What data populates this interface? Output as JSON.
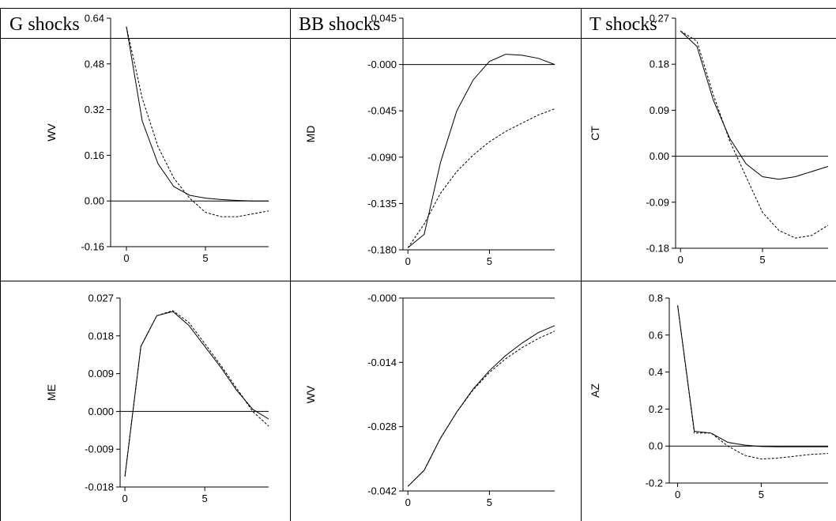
{
  "columns": [
    {
      "header": "G shocks"
    },
    {
      "header": "BB shocks"
    },
    {
      "header": "T shocks"
    }
  ],
  "chart_data": [
    {
      "type": "line",
      "panel": "top-left",
      "ylabel": "WV",
      "ylim": [
        -0.16,
        0.64
      ],
      "yticks": [
        "0.64",
        "0.48",
        "0.32",
        "0.16",
        "0.00",
        "-0.16"
      ],
      "xlim": [
        -1,
        9
      ],
      "xticks": [
        "0",
        "5"
      ],
      "x": [
        0,
        1,
        2,
        3,
        4,
        5,
        6,
        7,
        8,
        9
      ],
      "series": [
        {
          "style": "solid",
          "values": [
            0.61,
            0.28,
            0.13,
            0.05,
            0.02,
            0.01,
            0.005,
            0.002,
            0.0,
            0.0
          ]
        },
        {
          "style": "dashed",
          "values": [
            0.61,
            0.36,
            0.19,
            0.08,
            0.01,
            -0.04,
            -0.055,
            -0.055,
            -0.045,
            -0.035
          ]
        }
      ]
    },
    {
      "type": "line",
      "panel": "top-middle",
      "ylabel": "MD",
      "ylim": [
        -0.18,
        0.045
      ],
      "yticks": [
        "0.045",
        "-0.000",
        "-0.045",
        "-0.090",
        "-0.135",
        "-0.180"
      ],
      "xlim": [
        -0.3,
        9
      ],
      "xticks": [
        "0",
        "5"
      ],
      "x": [
        0,
        1,
        2,
        3,
        4,
        5,
        6,
        7,
        8,
        9
      ],
      "series": [
        {
          "style": "solid",
          "values": [
            -0.178,
            -0.165,
            -0.095,
            -0.045,
            -0.015,
            0.003,
            0.01,
            0.009,
            0.006,
            0.0
          ]
        },
        {
          "style": "dashed",
          "values": [
            -0.178,
            -0.155,
            -0.125,
            -0.104,
            -0.088,
            -0.075,
            -0.065,
            -0.057,
            -0.049,
            -0.043
          ]
        }
      ]
    },
    {
      "type": "line",
      "panel": "top-right",
      "ylabel": "CT",
      "ylim": [
        -0.18,
        0.27
      ],
      "yticks": [
        "0.27",
        "0.18",
        "0.09",
        "0.00",
        "-0.09",
        "-0.18"
      ],
      "xlim": [
        -0.3,
        9
      ],
      "xticks": [
        "0",
        "5"
      ],
      "x": [
        0,
        1,
        2,
        3,
        4,
        5,
        6,
        7,
        8,
        9
      ],
      "series": [
        {
          "style": "solid",
          "values": [
            0.245,
            0.215,
            0.11,
            0.035,
            -0.015,
            -0.04,
            -0.045,
            -0.04,
            -0.03,
            -0.02
          ]
        },
        {
          "style": "dashed",
          "values": [
            0.245,
            0.225,
            0.12,
            0.03,
            -0.04,
            -0.11,
            -0.145,
            -0.16,
            -0.155,
            -0.135
          ]
        }
      ]
    },
    {
      "type": "line",
      "panel": "bottom-left",
      "ylabel": "ME",
      "ylim": [
        -0.018,
        0.027
      ],
      "yticks": [
        "0.027",
        "0.018",
        "0.009",
        "0.000",
        "-0.009",
        "-0.018"
      ],
      "xlim": [
        -0.3,
        9
      ],
      "xticks": [
        "0",
        "5"
      ],
      "x": [
        0,
        1,
        2,
        3,
        4,
        5,
        6,
        7,
        8,
        9
      ],
      "series": [
        {
          "style": "solid",
          "values": [
            -0.0155,
            0.0155,
            0.0228,
            0.0238,
            0.0205,
            0.0155,
            0.0105,
            0.005,
            0.0005,
            -0.0018
          ]
        },
        {
          "style": "dashed",
          "values": [
            -0.0155,
            0.0155,
            0.0228,
            0.024,
            0.0212,
            0.0162,
            0.011,
            0.0055,
            0.0,
            -0.0035
          ]
        }
      ]
    },
    {
      "type": "line",
      "panel": "bottom-middle",
      "ylabel": "WV",
      "ylim": [
        -0.042,
        0.0
      ],
      "yticks": [
        "-0.000",
        "-0.014",
        "-0.028",
        "-0.042"
      ],
      "xlim": [
        -0.3,
        9
      ],
      "xticks": [
        "0",
        "5"
      ],
      "x": [
        0,
        1,
        2,
        3,
        4,
        5,
        6,
        7,
        8,
        9
      ],
      "series": [
        {
          "style": "solid",
          "values": [
            -0.041,
            -0.0375,
            -0.0305,
            -0.0248,
            -0.0198,
            -0.0158,
            -0.0125,
            -0.0098,
            -0.0075,
            -0.006
          ]
        },
        {
          "style": "dashed",
          "values": [
            -0.041,
            -0.0375,
            -0.0305,
            -0.0248,
            -0.02,
            -0.0162,
            -0.0132,
            -0.0108,
            -0.0088,
            -0.0072
          ]
        }
      ]
    },
    {
      "type": "line",
      "panel": "bottom-right",
      "ylabel": "AZ",
      "ylim": [
        -0.2,
        0.8
      ],
      "yticks": [
        "0.8",
        "0.6",
        "0.4",
        "0.2",
        "0.0",
        "-0.2"
      ],
      "xlim": [
        -0.5,
        9
      ],
      "xticks": [
        "0",
        "5"
      ],
      "x": [
        0,
        1,
        2,
        3,
        4,
        5,
        6,
        7,
        8,
        9
      ],
      "series": [
        {
          "style": "solid",
          "values": [
            0.76,
            0.08,
            0.07,
            0.02,
            0.005,
            -0.002,
            -0.004,
            -0.004,
            -0.004,
            -0.004
          ]
        },
        {
          "style": "dashed",
          "values": [
            0.76,
            0.07,
            0.07,
            0.0,
            -0.05,
            -0.07,
            -0.065,
            -0.055,
            -0.045,
            -0.04
          ]
        }
      ]
    }
  ]
}
